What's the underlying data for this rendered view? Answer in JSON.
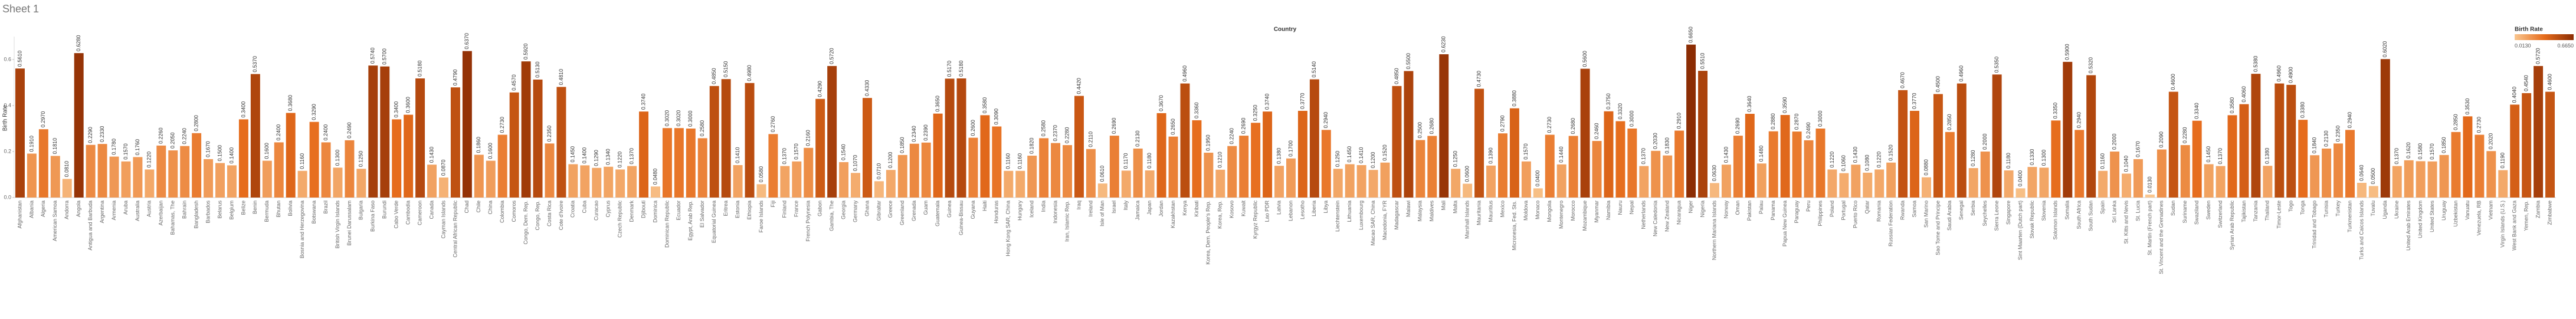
{
  "chart_data": {
    "type": "bar",
    "title": "Sheet 1",
    "header": "Country",
    "y_label": "Birth Rate",
    "ylim": [
      0,
      0.7
    ],
    "yticks": [
      {
        "value": 0,
        "label": "0.0"
      },
      {
        "value": 0.2,
        "label": "0.2"
      },
      {
        "value": 0.4,
        "label": "0.4"
      },
      {
        "value": 0.6,
        "label": "0.6"
      }
    ],
    "grid": false,
    "legend": {
      "title": "Birth Rate",
      "position": "top-right",
      "ticks": [
        {
          "value": 0.013,
          "label": "0.0130"
        },
        {
          "value": 0.665,
          "label": "0.6650"
        }
      ],
      "colors": [
        "#f9c68f",
        "#e66c1c",
        "#8c2d04"
      ]
    },
    "categories": [
      "Afghanistan",
      "Albania",
      "Algeria",
      "American Samoa",
      "Andorra",
      "Angola",
      "Antigua and Barbuda",
      "Argentina",
      "Armenia",
      "Aruba",
      "Australia",
      "Austria",
      "Azerbaijan",
      "Bahamas, The",
      "Bahrain",
      "Bangladesh",
      "Barbados",
      "Belarus",
      "Belgium",
      "Belize",
      "Benin",
      "Bermuda",
      "Bhutan",
      "Bolivia",
      "Bosnia and Herzegovina",
      "Botswana",
      "Brazil",
      "British Virgin Islands",
      "Brunei Darussalam",
      "Bulgaria",
      "Burkina Faso",
      "Burundi",
      "Cabo Verde",
      "Cambodia",
      "Cameroon",
      "Canada",
      "Cayman Islands",
      "Central African Republic",
      "Chad",
      "Chile",
      "China",
      "Colombia",
      "Comoros",
      "Congo, Dem. Rep.",
      "Congo, Rep.",
      "Costa Rica",
      "Cote d'Ivoire",
      "Croatia",
      "Cuba",
      "Curacao",
      "Cyprus",
      "Czech Republic",
      "Denmark",
      "Djibouti",
      "Dominica",
      "Dominican Republic",
      "Ecuador",
      "Egypt, Arab Rep.",
      "El Salvador",
      "Equatorial Guinea",
      "Eritrea",
      "Estonia",
      "Ethiopia",
      "Faroe Islands",
      "Fiji",
      "Finland",
      "France",
      "French Polynesia",
      "Gabon",
      "Gambia, The",
      "Georgia",
      "Germany",
      "Ghana",
      "Gibraltar",
      "Greece",
      "Greenland",
      "Grenada",
      "Guam",
      "Guatemala",
      "Guinea",
      "Guinea-Bissau",
      "Guyana",
      "Haiti",
      "Honduras",
      "Hong Kong SAR, China",
      "Hungary",
      "Iceland",
      "India",
      "Indonesia",
      "Iran, Islamic Rep.",
      "Iraq",
      "Ireland",
      "Isle of Man",
      "Israel",
      "Italy",
      "Jamaica",
      "Japan",
      "Jordan",
      "Kazakhstan",
      "Kenya",
      "Kiribati",
      "Korea, Dem. People's Rep.",
      "Korea, Rep.",
      "Kosovo",
      "Kuwait",
      "Kyrgyz Republic",
      "Lao PDR",
      "Latvia",
      "Lebanon",
      "Lesotho",
      "Liberia",
      "Libya",
      "Liechtenstein",
      "Lithuania",
      "Luxembourg",
      "Macao SAR, China",
      "Macedonia, FYR",
      "Madagascar",
      "Malawi",
      "Malaysia",
      "Maldives",
      "Mali",
      "Malta",
      "Marshall Islands",
      "Mauritania",
      "Mauritius",
      "Mexico",
      "Micronesia, Fed. Sts.",
      "Moldova",
      "Monaco",
      "Mongolia",
      "Montenegro",
      "Morocco",
      "Mozambique",
      "Myanmar",
      "Namibia",
      "Nauru",
      "Nepal",
      "Netherlands",
      "New Caledonia",
      "New Zealand",
      "Nicaragua",
      "Niger",
      "Nigeria",
      "Northern Mariana Islands",
      "Norway",
      "Oman",
      "Pakistan",
      "Palau",
      "Panama",
      "Papua New Guinea",
      "Paraguay",
      "Peru",
      "Philippines",
      "Poland",
      "Portugal",
      "Puerto Rico",
      "Qatar",
      "Romania",
      "Russian Federation",
      "Rwanda",
      "Samoa",
      "San Marino",
      "Sao Tome and Principe",
      "Saudi Arabia",
      "Senegal",
      "Serbia",
      "Seychelles",
      "Sierra Leone",
      "Singapore",
      "Sint Maarten (Dutch part)",
      "Slovak Republic",
      "Slovenia",
      "Solomon Islands",
      "Somalia",
      "South Africa",
      "South Sudan",
      "Spain",
      "Sri Lanka",
      "St. Kitts and Nevis",
      "St. Lucia",
      "St. Martin (French part)",
      "St. Vincent and the Grenadines",
      "Sudan",
      "Suriname",
      "Swaziland",
      "Sweden",
      "Switzerland",
      "Syrian Arab Republic",
      "Tajikistan",
      "Tanzania",
      "Thailand",
      "Timor-Leste",
      "Togo",
      "Tonga",
      "Trinidad and Tobago",
      "Tunisia",
      "Turkey",
      "Turkmenistan",
      "Turks and Caicos Islands",
      "Tuvalu",
      "Uganda",
      "Ukraine",
      "United Arab Emirates",
      "United Kingdom",
      "United States",
      "Uruguay",
      "Uzbekistan",
      "Vanuatu",
      "Venezuela, RB",
      "Vietnam",
      "Virgin Islands (U.S.)",
      "West Bank and Gaza",
      "Yemen, Rep.",
      "Zambia",
      "Zimbabwe"
    ],
    "values": [
      0.561,
      0.191,
      0.297,
      0.181,
      0.081,
      0.628,
      0.229,
      0.233,
      0.178,
      0.157,
      0.176,
      0.122,
      0.226,
      0.205,
      0.224,
      0.28,
      0.167,
      0.15,
      0.14,
      0.34,
      0.537,
      0.16,
      0.24,
      0.368,
      0.116,
      0.329,
      0.24,
      0.13,
      0.249,
      0.125,
      0.574,
      0.57,
      0.34,
      0.36,
      0.518,
      0.143,
      0.087,
      0.479,
      0.637,
      0.186,
      0.16,
      0.273,
      0.457,
      0.592,
      0.513,
      0.235,
      0.481,
      0.145,
      0.14,
      0.129,
      0.134,
      0.122,
      0.137,
      0.374,
      0.048,
      0.302,
      0.302,
      0.3,
      0.258,
      0.485,
      0.515,
      0.141,
      0.498,
      0.058,
      0.276,
      0.137,
      0.157,
      0.216,
      0.429,
      0.572,
      0.154,
      0.107,
      0.433,
      0.071,
      0.12,
      0.185,
      0.234,
      0.239,
      0.365,
      0.517,
      0.518,
      0.26,
      0.358,
      0.309,
      0.116,
      0.116,
      0.182,
      0.258,
      0.237,
      0.228,
      0.442,
      0.211,
      0.061,
      0.269,
      0.117,
      0.213,
      0.118,
      0.367,
      0.265,
      0.496,
      0.336,
      0.195,
      0.121,
      0.224,
      0.269,
      0.325,
      0.374,
      0.138,
      0.17,
      0.377,
      0.514,
      0.294,
      0.125,
      0.145,
      0.141,
      0.12,
      0.152,
      0.485,
      0.55,
      0.25,
      0.268,
      0.623,
      0.125,
      0.06,
      0.473,
      0.139,
      0.279,
      0.388,
      0.157,
      0.04,
      0.273,
      0.144,
      0.268,
      0.56,
      0.246,
      0.375,
      0.332,
      0.3,
      0.137,
      0.203,
      0.183,
      0.291,
      0.665,
      0.551,
      0.063,
      0.143,
      0.269,
      0.364,
      0.148,
      0.288,
      0.359,
      0.287,
      0.249,
      0.3,
      0.122,
      0.106,
      0.143,
      0.108,
      0.122,
      0.152,
      0.467,
      0.377,
      0.088,
      0.45,
      0.285,
      0.496,
      0.128,
      0.2,
      0.535,
      0.118,
      0.04,
      0.133,
      0.13,
      0.335,
      0.59,
      0.294,
      0.532,
      0.116,
      0.2,
      0.104,
      0.167,
      0.013,
      0.209,
      0.46,
      0.228,
      0.334,
      0.145,
      0.137,
      0.358,
      0.406,
      0.538,
      0.138,
      0.496,
      0.49,
      0.338,
      0.184,
      0.213,
      0.235,
      0.294,
      0.064,
      0.05,
      0.602,
      0.137,
      0.162,
      0.158,
      0.157,
      0.185,
      0.285,
      0.353,
      0.273,
      0.202,
      0.119,
      0.404,
      0.454,
      0.572,
      0.46
    ],
    "value_labels": [
      "0.5610",
      "0.1910",
      "0.2970",
      "0.1810",
      "0.0810",
      "0.6280",
      "0.2290",
      "0.2330",
      "0.1780",
      "0.1570",
      "0.1760",
      "0.1220",
      "0.2260",
      "0.2050",
      "0.2240",
      "0.2800",
      "0.1670",
      "0.1500",
      "0.1400",
      "0.3400",
      "0.5370",
      "0.1600",
      "0.2400",
      "0.3680",
      "0.1160",
      "0.3290",
      "0.2400",
      "0.1300",
      "0.2490",
      "0.1250",
      "0.5740",
      "0.5700",
      "0.3400",
      "0.3600",
      "0.5180",
      "0.1430",
      "0.0870",
      "0.4790",
      "0.6370",
      "0.1860",
      "0.1600",
      "0.2730",
      "0.4570",
      "0.5920",
      "0.5130",
      "0.2350",
      "0.4810",
      "0.1450",
      "0.1400",
      "0.1290",
      "0.1340",
      "0.1220",
      "0.1370",
      "0.3740",
      "0.0480",
      "0.3020",
      "0.3020",
      "0.3000",
      "0.2580",
      "0.4850",
      "0.5150",
      "0.1410",
      "0.4980",
      "0.0580",
      "0.2760",
      "0.1370",
      "0.1570",
      "0.2160",
      "0.4290",
      "0.5720",
      "0.1540",
      "0.1070",
      "0.4330",
      "0.0710",
      "0.1200",
      "0.1850",
      "0.2340",
      "0.2390",
      "0.3650",
      "0.5170",
      "0.5180",
      "0.2600",
      "0.3580",
      "0.3090",
      "0.1160",
      "0.1160",
      "0.1820",
      "0.2580",
      "0.2370",
      "0.2280",
      "0.4420",
      "0.2110",
      "0.0610",
      "0.2690",
      "0.1170",
      "0.2130",
      "0.1180",
      "0.3670",
      "0.2650",
      "0.4960",
      "0.3360",
      "0.1950",
      "0.1210",
      "0.2240",
      "0.2690",
      "0.3250",
      "0.3740",
      "0.1380",
      "0.1700",
      "0.3770",
      "0.5140",
      "0.2940",
      "0.1250",
      "0.1450",
      "0.1410",
      "0.1200",
      "0.1520",
      "0.4850",
      "0.5500",
      "0.2500",
      "0.2680",
      "0.6230",
      "0.1250",
      "0.0600",
      "0.4730",
      "0.1390",
      "0.2790",
      "0.3880",
      "0.1570",
      "0.0400",
      "0.2730",
      "0.1440",
      "0.2680",
      "0.5600",
      "0.2460",
      "0.3750",
      "0.3320",
      "0.3000",
      "0.1370",
      "0.2030",
      "0.1830",
      "0.2910",
      "0.6650",
      "0.5510",
      "0.0630",
      "0.1430",
      "0.2690",
      "0.3640",
      "0.1480",
      "0.2880",
      "0.3590",
      "0.2870",
      "0.2490",
      "0.3000",
      "0.1220",
      "0.1060",
      "0.1430",
      "0.1080",
      "0.1220",
      "0.1520",
      "0.4670",
      "0.3770",
      "0.0880",
      "0.4500",
      "0.2850",
      "0.4960",
      "0.1280",
      "0.2000",
      "0.5350",
      "0.1180",
      "0.0400",
      "0.1330",
      "0.1300",
      "0.3350",
      "0.5900",
      "0.2940",
      "0.5320",
      "0.1160",
      "0.2000",
      "0.1040",
      "0.1670",
      "0.0130",
      "0.2090",
      "0.4600",
      "0.2280",
      "0.3340",
      "0.1450",
      "0.1370",
      "0.3580",
      "0.4060",
      "0.5380",
      "0.1380",
      "0.4960",
      "0.4900",
      "0.3380",
      "0.1840",
      "0.2130",
      "0.2350",
      "0.2940",
      "0.0640",
      "0.0500",
      "0.6020",
      "0.1370",
      "0.1620",
      "0.1580",
      "0.1570",
      "0.1850",
      "0.2850",
      "0.3530",
      "0.2730",
      "0.2020",
      "0.1190",
      "0.4040",
      "0.4540",
      "0.5720",
      "0.4600"
    ]
  }
}
